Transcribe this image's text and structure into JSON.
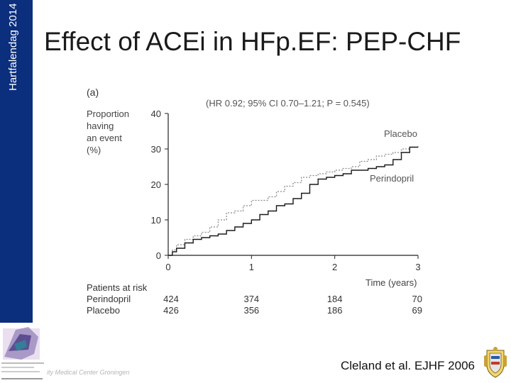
{
  "sidebar": {
    "label": "Hartfalendag 2014"
  },
  "slide": {
    "title": "Effect of ACEi in HFp.EF: PEP-CHF"
  },
  "footer": {
    "institution": "ity Medical Center Groningen",
    "citation": "Cleland et al. EJHF 2006"
  },
  "colors": {
    "sidebar": "#0b2f7d",
    "perindopril": "#1a1a1a",
    "placebo": "#8a8a8a",
    "axis": "#222222"
  },
  "chart_data": {
    "type": "line",
    "panel_label": "(a)",
    "annotation": "(HR 0.92; 95% CI 0.70–1.21; P = 0.545)",
    "ylabel_lines": [
      "Proportion",
      "having",
      "an event",
      "(%)"
    ],
    "xlabel": "Time (years)",
    "xlim": [
      0,
      3
    ],
    "ylim": [
      0,
      40
    ],
    "x_ticks": [
      0,
      1,
      2,
      3
    ],
    "y_ticks": [
      0,
      10,
      20,
      30,
      40
    ],
    "series": [
      {
        "name": "Placebo",
        "style": "dotted",
        "x": [
          0,
          0.05,
          0.1,
          0.2,
          0.3,
          0.4,
          0.5,
          0.6,
          0.7,
          0.8,
          0.9,
          1.0,
          1.1,
          1.2,
          1.3,
          1.4,
          1.5,
          1.6,
          1.7,
          1.8,
          1.9,
          2.0,
          2.1,
          2.2,
          2.3,
          2.4,
          2.5,
          2.6,
          2.7,
          2.8,
          2.9,
          3.0
        ],
        "values": [
          0,
          1.5,
          3,
          4.5,
          5.5,
          6.5,
          8,
          10,
          12,
          12.5,
          14,
          15.5,
          15.5,
          16.5,
          18,
          19.5,
          20.5,
          22,
          22.5,
          23,
          23.5,
          24,
          24.5,
          25,
          26.5,
          27,
          28,
          28.5,
          29,
          30,
          30.5,
          31
        ]
      },
      {
        "name": "Perindopril",
        "style": "solid",
        "x": [
          0,
          0.05,
          0.1,
          0.2,
          0.3,
          0.4,
          0.5,
          0.6,
          0.7,
          0.8,
          0.9,
          1.0,
          1.1,
          1.2,
          1.3,
          1.4,
          1.5,
          1.6,
          1.7,
          1.8,
          1.9,
          2.0,
          2.1,
          2.2,
          2.3,
          2.4,
          2.5,
          2.6,
          2.7,
          2.8,
          2.9,
          3.0
        ],
        "values": [
          0,
          1,
          2,
          3.5,
          4.5,
          5,
          5.5,
          6,
          7,
          8,
          9,
          10,
          11.5,
          12.5,
          14,
          14.5,
          16,
          17.5,
          20,
          21.5,
          22,
          22.5,
          23,
          24,
          24,
          24.5,
          25,
          25.5,
          27,
          29,
          30.5,
          30.5
        ]
      }
    ],
    "legend": [
      {
        "name": "Placebo",
        "placement": "upper-right, above curves"
      },
      {
        "name": "Perindopril",
        "placement": "right, below curves"
      }
    ],
    "risk_table": {
      "title": "Patients at risk",
      "times": [
        0,
        1,
        2,
        3
      ],
      "rows": [
        {
          "label": "Perindopril",
          "values": [
            424,
            374,
            184,
            70
          ]
        },
        {
          "label": "Placebo",
          "values": [
            426,
            356,
            186,
            69
          ]
        }
      ]
    }
  }
}
